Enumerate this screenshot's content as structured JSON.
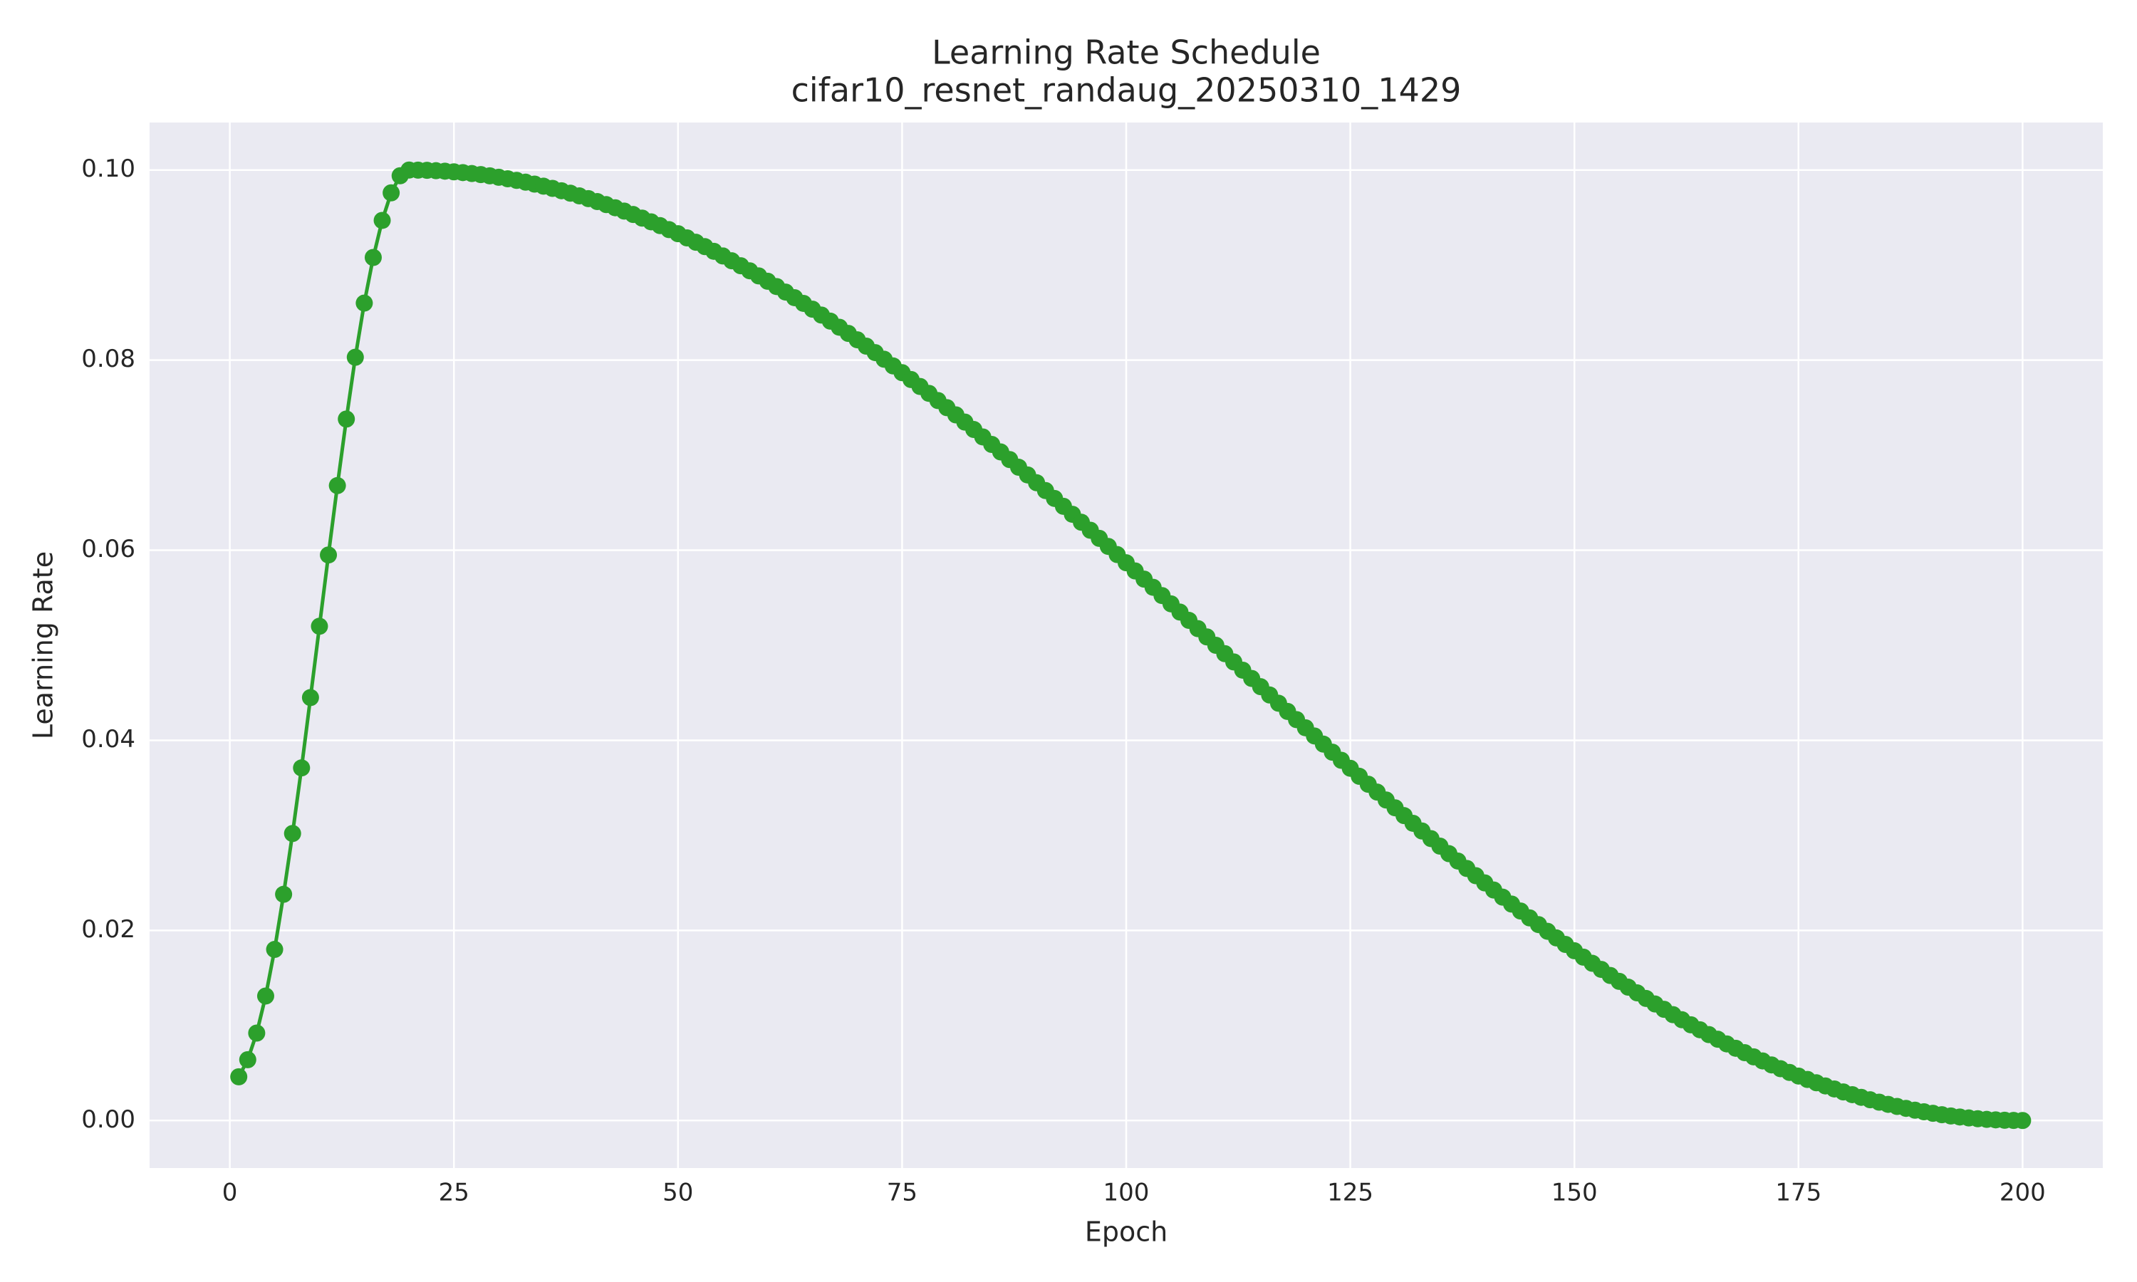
{
  "chart_data": {
    "type": "line",
    "title": "Learning Rate Schedule",
    "subtitle": "cifar10_resnet_randaug_20250310_1429",
    "x_label": "Epoch",
    "y_label": "Learning Rate",
    "color": "#2ca02c",
    "grid": true,
    "markers": true,
    "xlim": [
      -8.95,
      208.95
    ],
    "xticks": [
      0,
      25,
      50,
      75,
      100,
      125,
      150,
      175,
      200
    ],
    "ylim": [
      -0.005,
      0.105
    ],
    "yticks": [
      {
        "value": 0,
        "label": "0.00"
      },
      0.02,
      0.04,
      0.06,
      0.08,
      {
        "value": 0.1,
        "label": "0.10"
      }
    ],
    "x": [
      1,
      2,
      3,
      4,
      5,
      6,
      7,
      8,
      9,
      10,
      11,
      12,
      13,
      14,
      15,
      16,
      17,
      18,
      19,
      20,
      21,
      22,
      23,
      24,
      25,
      26,
      27,
      28,
      29,
      30,
      31,
      32,
      33,
      34,
      35,
      36,
      37,
      38,
      39,
      40,
      41,
      42,
      43,
      44,
      45,
      46,
      47,
      48,
      49,
      50,
      51,
      52,
      53,
      54,
      55,
      56,
      57,
      58,
      59,
      60,
      61,
      62,
      63,
      64,
      65,
      66,
      67,
      68,
      69,
      70,
      71,
      72,
      73,
      74,
      75,
      76,
      77,
      78,
      79,
      80,
      81,
      82,
      83,
      84,
      85,
      86,
      87,
      88,
      89,
      90,
      91,
      92,
      93,
      94,
      95,
      96,
      97,
      98,
      99,
      100,
      101,
      102,
      103,
      104,
      105,
      106,
      107,
      108,
      109,
      110,
      111,
      112,
      113,
      114,
      115,
      116,
      117,
      118,
      119,
      120,
      121,
      122,
      123,
      124,
      125,
      126,
      127,
      128,
      129,
      130,
      131,
      132,
      133,
      134,
      135,
      136,
      137,
      138,
      139,
      140,
      141,
      142,
      143,
      144,
      145,
      146,
      147,
      148,
      149,
      150,
      151,
      152,
      153,
      154,
      155,
      156,
      157,
      158,
      159,
      160,
      161,
      162,
      163,
      164,
      165,
      166,
      167,
      168,
      169,
      170,
      171,
      172,
      173,
      174,
      175,
      176,
      177,
      178,
      179,
      180,
      181,
      182,
      183,
      184,
      185,
      186,
      187,
      188,
      189,
      190,
      191,
      192,
      193,
      194,
      195,
      196,
      197,
      198,
      199,
      200
    ],
    "values": [
      0.0046,
      0.0064,
      0.0092,
      0.0131,
      0.018,
      0.0238,
      0.0302,
      0.0371,
      0.0445,
      0.052,
      0.0595,
      0.0668,
      0.0738,
      0.0803,
      0.086,
      0.0908,
      0.0947,
      0.0976,
      0.0994,
      0.1,
      0.09999,
      0.09997,
      0.09993,
      0.09988,
      0.09981,
      0.09973,
      0.09963,
      0.09952,
      0.09939,
      0.09924,
      0.09908,
      0.09891,
      0.09872,
      0.09852,
      0.0983,
      0.09807,
      0.09782,
      0.09756,
      0.09728,
      0.09699,
      0.09668,
      0.09636,
      0.09603,
      0.09568,
      0.09532,
      0.09494,
      0.09455,
      0.09415,
      0.09373,
      0.0933,
      0.09286,
      0.0924,
      0.09194,
      0.09145,
      0.09096,
      0.09045,
      0.08993,
      0.0894,
      0.08886,
      0.0883,
      0.08774,
      0.08716,
      0.08657,
      0.08597,
      0.08536,
      0.08474,
      0.0841,
      0.08346,
      0.08281,
      0.08214,
      0.08147,
      0.08079,
      0.08009,
      0.07939,
      0.07868,
      0.07796,
      0.07723,
      0.0765,
      0.07575,
      0.075,
      0.07424,
      0.07348,
      0.0727,
      0.07192,
      0.07113,
      0.07034,
      0.06954,
      0.06873,
      0.06792,
      0.0671,
      0.06628,
      0.06545,
      0.06462,
      0.06378,
      0.06294,
      0.0621,
      0.06125,
      0.0604,
      0.05954,
      0.05868,
      0.05782,
      0.05696,
      0.0561,
      0.05523,
      0.05436,
      0.05349,
      0.05262,
      0.05175,
      0.05088,
      0.05,
      0.04912,
      0.04825,
      0.04738,
      0.04651,
      0.04564,
      0.04477,
      0.0439,
      0.04304,
      0.04218,
      0.04132,
      0.04046,
      0.0396,
      0.03875,
      0.0379,
      0.03706,
      0.03622,
      0.03538,
      0.03455,
      0.03372,
      0.0329,
      0.03208,
      0.03127,
      0.03046,
      0.02966,
      0.02887,
      0.02808,
      0.0273,
      0.02652,
      0.02576,
      0.025,
      0.02425,
      0.0235,
      0.02277,
      0.02204,
      0.02132,
      0.02061,
      0.01991,
      0.01921,
      0.01853,
      0.01786,
      0.01719,
      0.01654,
      0.0159,
      0.01526,
      0.01464,
      0.01403,
      0.01343,
      0.01284,
      0.01226,
      0.0117,
      0.01114,
      0.0106,
      0.01007,
      0.00955,
      0.00904,
      0.00855,
      0.00806,
      0.0076,
      0.00714,
      0.0067,
      0.00627,
      0.00585,
      0.00545,
      0.00506,
      0.00468,
      0.00432,
      0.00397,
      0.00364,
      0.00332,
      0.00301,
      0.00272,
      0.00244,
      0.00218,
      0.00193,
      0.0017,
      0.00148,
      0.00128,
      0.00109,
      0.00092,
      0.00076,
      0.00061,
      0.00048,
      0.00037,
      0.00027,
      0.00019,
      0.00012,
      7e-05,
      3e-05,
      1e-05,
      0
    ]
  }
}
